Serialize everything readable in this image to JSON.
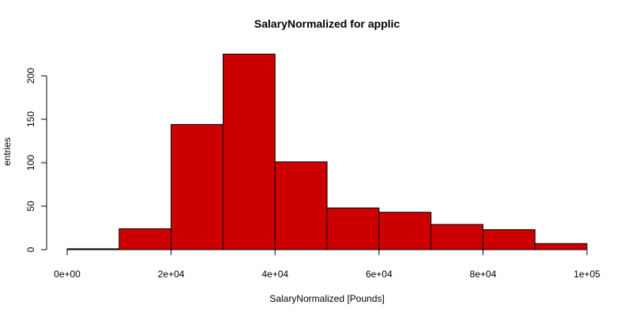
{
  "chart_data": {
    "type": "bar",
    "title": "SalaryNormalized for applic",
    "xlabel": "SalaryNormalized [Pounds]",
    "ylabel": "entries",
    "bins": [
      {
        "start": 0,
        "end": 10000,
        "value": 1
      },
      {
        "start": 10000,
        "end": 20000,
        "value": 24
      },
      {
        "start": 20000,
        "end": 30000,
        "value": 144
      },
      {
        "start": 30000,
        "end": 40000,
        "value": 225
      },
      {
        "start": 40000,
        "end": 50000,
        "value": 101
      },
      {
        "start": 50000,
        "end": 60000,
        "value": 48
      },
      {
        "start": 60000,
        "end": 70000,
        "value": 43
      },
      {
        "start": 70000,
        "end": 80000,
        "value": 29
      },
      {
        "start": 80000,
        "end": 90000,
        "value": 23
      },
      {
        "start": 90000,
        "end": 100000,
        "value": 7
      }
    ],
    "xlim": [
      0,
      100000
    ],
    "ylim": [
      0,
      200
    ],
    "x_ticks": [
      {
        "value": 0,
        "label": "0e+00"
      },
      {
        "value": 20000,
        "label": "2e+04"
      },
      {
        "value": 40000,
        "label": "4e+04"
      },
      {
        "value": 60000,
        "label": "6e+04"
      },
      {
        "value": 80000,
        "label": "8e+04"
      },
      {
        "value": 100000,
        "label": "1e+05"
      }
    ],
    "y_ticks": [
      {
        "value": 0,
        "label": "0"
      },
      {
        "value": 50,
        "label": "50"
      },
      {
        "value": 100,
        "label": "100"
      },
      {
        "value": 150,
        "label": "150"
      },
      {
        "value": 200,
        "label": "200"
      }
    ],
    "bar_color": "#cc0000",
    "grid": false
  }
}
